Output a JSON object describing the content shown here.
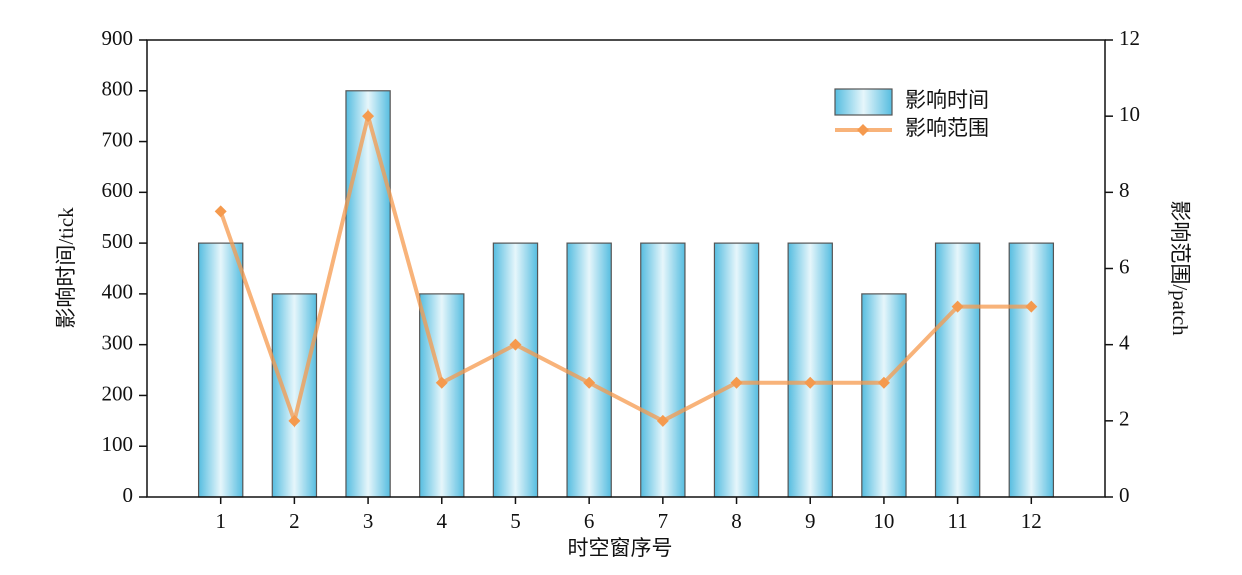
{
  "chart_data": {
    "type": "combo",
    "xlabel": "时空窗序号",
    "ylabel": "影响时间/tick",
    "y2label": "影响范围/patch",
    "categories": [
      "1",
      "2",
      "3",
      "4",
      "5",
      "6",
      "7",
      "8",
      "9",
      "10",
      "11",
      "12"
    ],
    "series": [
      {
        "name": "影响时间",
        "type": "bar",
        "color": "#56bde0",
        "values": [
          500,
          400,
          800,
          400,
          500,
          500,
          500,
          500,
          500,
          400,
          500,
          500
        ]
      },
      {
        "name": "影响范围",
        "type": "line",
        "axis": "y2",
        "color": "#f59a4e",
        "values": [
          7.5,
          2,
          10,
          3,
          4,
          3,
          2,
          3,
          3,
          3,
          5,
          5
        ]
      }
    ],
    "ylim": [
      0,
      900
    ],
    "yticks": [
      0,
      100,
      200,
      300,
      400,
      500,
      600,
      700,
      800,
      900
    ],
    "y2lim": [
      0,
      12
    ],
    "y2ticks": [
      0,
      2,
      4,
      6,
      8,
      10,
      12
    ],
    "legend": "upper-right"
  }
}
